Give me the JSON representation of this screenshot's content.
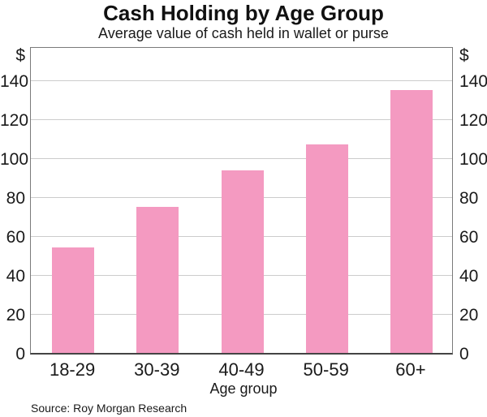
{
  "chart_data": {
    "type": "bar",
    "title": "Cash Holding by Age Group",
    "subtitle": "Average value of cash held in wallet or purse",
    "categories": [
      "18-29",
      "30-39",
      "40-49",
      "50-59",
      "60+"
    ],
    "values": [
      54,
      75,
      94,
      107,
      135
    ],
    "xlabel": "Age group",
    "ylabel_left": "$",
    "ylabel_right": "$",
    "yticks": [
      0,
      20,
      40,
      60,
      80,
      100,
      120,
      140
    ],
    "ylim": [
      0,
      158
    ],
    "grid": "horizontal",
    "legend": "none",
    "source": "Source: Roy Morgan Research",
    "colors": {
      "bar_fill": "#F49AC1",
      "gridline": "#cccccc",
      "frame": "#7a7a7a",
      "baseline": "#444444",
      "text": "#1a1a1a"
    }
  }
}
